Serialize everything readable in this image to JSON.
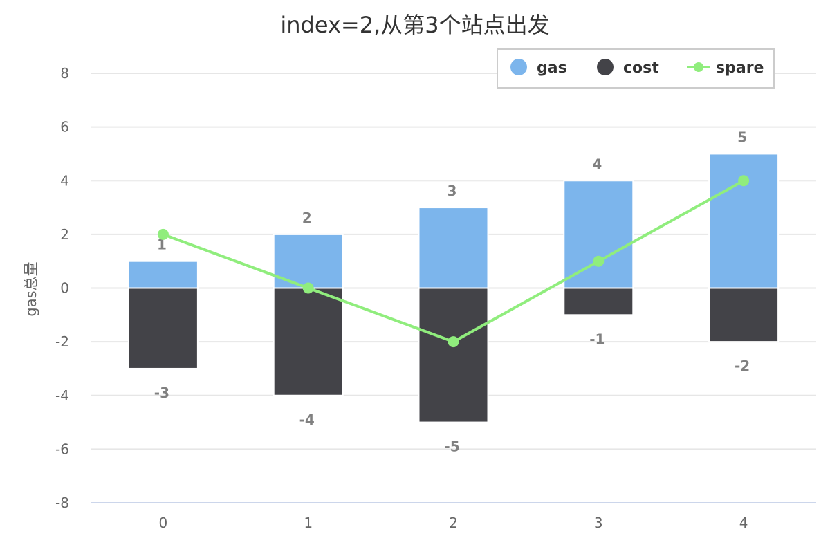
{
  "chart_data": {
    "type": "bar",
    "title": "index=2,从第3个站点出发",
    "xlabel": "",
    "ylabel": "gas总量",
    "categories": [
      "0",
      "1",
      "2",
      "3",
      "4"
    ],
    "ylim": [
      -8,
      8
    ],
    "yticks": [
      -8,
      -6,
      -4,
      -2,
      0,
      2,
      4,
      6,
      8
    ],
    "grid": true,
    "stacked": true,
    "legend_position": "top-right",
    "series": [
      {
        "name": "gas",
        "kind": "bar",
        "color": "#7cb5ec",
        "values": [
          1,
          2,
          3,
          4,
          5
        ],
        "labels": [
          "1",
          "2",
          "3",
          "4",
          "5"
        ]
      },
      {
        "name": "cost",
        "kind": "bar",
        "color": "#434348",
        "values": [
          -3,
          -4,
          -5,
          -1,
          -2
        ],
        "labels": [
          "-3",
          "-4",
          "-5",
          "-1",
          "-2"
        ]
      },
      {
        "name": "spare",
        "kind": "line",
        "color": "#90ed7d",
        "values": [
          2,
          0,
          -2,
          1,
          4
        ]
      }
    ]
  }
}
